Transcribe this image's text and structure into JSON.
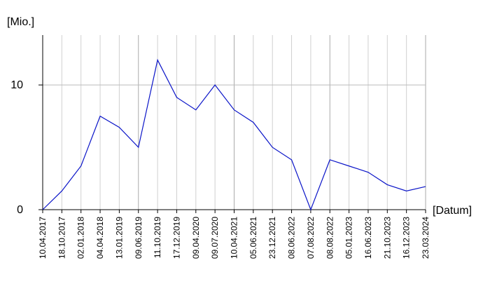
{
  "chart_data": {
    "type": "line",
    "y_label": "[Mio.]",
    "x_label": "[Datum]",
    "categories": [
      "10.04.2017",
      "18.10.2017",
      "02.01.2018",
      "04.04.2018",
      "13.01.2019",
      "09.06.2019",
      "11.10.2019",
      "17.12.2019",
      "09.04.2020",
      "09.07.2020",
      "10.04.2021",
      "05.06.2021",
      "23.12.2021",
      "08.06.2022",
      "07.08.2022",
      "08.08.2022",
      "05.01.2023",
      "16.06.2023",
      "21.10.2023",
      "16.12.2023",
      "23.03.2024"
    ],
    "values": [
      0,
      1.5,
      3.5,
      7.5,
      6.6,
      5,
      12,
      9,
      8,
      10,
      8,
      7,
      5,
      4,
      0,
      4,
      3.5,
      3,
      2,
      1.5,
      1.85
    ],
    "color": "#0a14c8",
    "ylim": [
      0,
      14
    ],
    "yticks": [
      0,
      10
    ],
    "grid": true
  }
}
